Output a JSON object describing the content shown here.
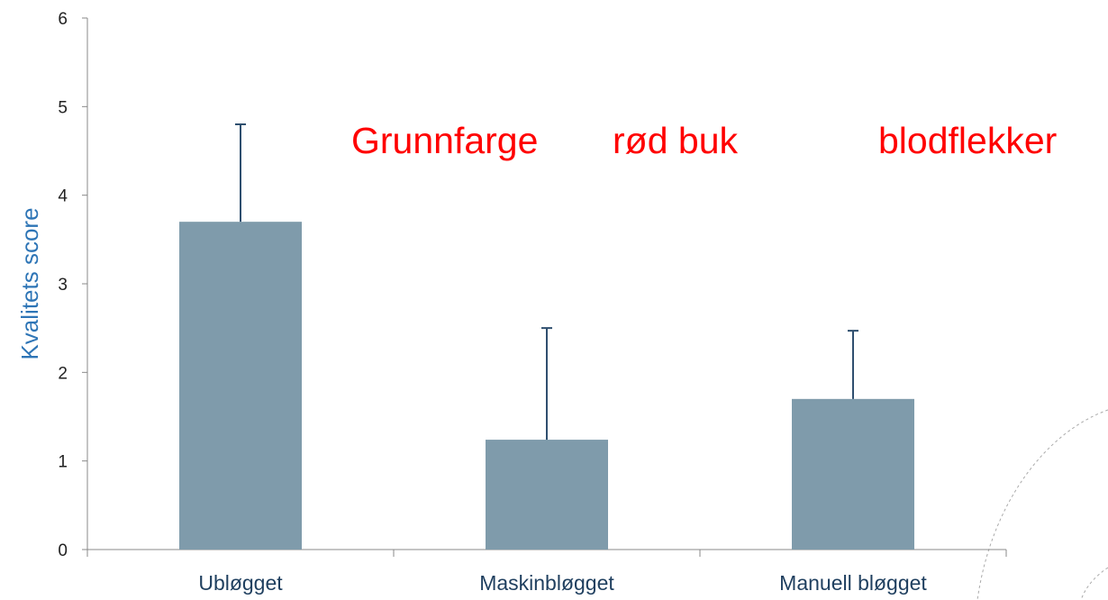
{
  "chart_data": {
    "type": "bar",
    "y_label": "Kvalitets score",
    "annotations": [
      "Grunnfarge",
      "rød buk",
      "blodflekker"
    ],
    "annotation_color": "#ff0000",
    "categories": [
      "Ubløgget",
      "Maskinbløgget",
      "Manuell bløgget"
    ],
    "values": [
      3.7,
      1.24,
      1.7
    ],
    "errors": [
      1.1,
      1.26,
      0.77
    ],
    "color": "#7f9bab",
    "ylim": [
      0,
      6
    ],
    "yticks": [
      0,
      1,
      2,
      3,
      4,
      5,
      6
    ],
    "grid": false
  }
}
